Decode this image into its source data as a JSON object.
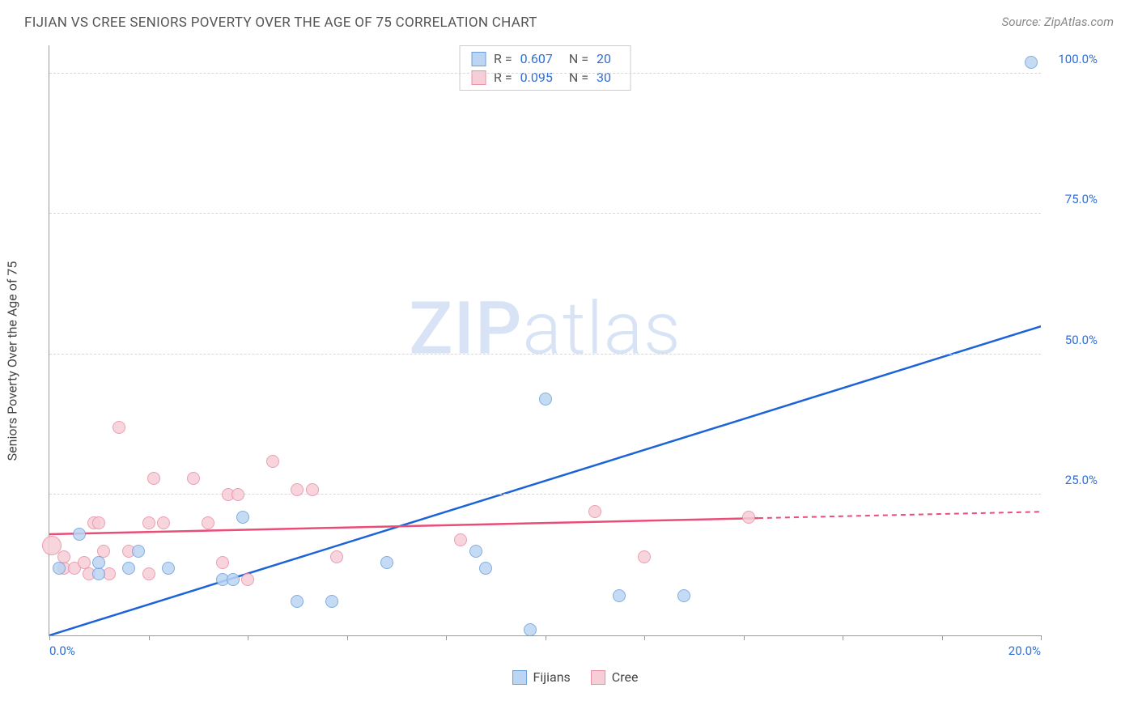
{
  "header": {
    "title": "FIJIAN VS CREE SENIORS POVERTY OVER THE AGE OF 75 CORRELATION CHART",
    "source_prefix": "Source: ",
    "source_name": "ZipAtlas.com"
  },
  "watermark": {
    "zip": "ZIP",
    "atlas": "atlas"
  },
  "chart": {
    "type": "scatter",
    "ylabel": "Seniors Poverty Over the Age of 75",
    "xlim": [
      0,
      20
    ],
    "ylim": [
      0,
      105
    ],
    "xtick_values": [
      0,
      2,
      4,
      6,
      8,
      10,
      12,
      14,
      16,
      18,
      20
    ],
    "xtick_labels": {
      "0": "0.0%",
      "20": "20.0%"
    },
    "ytick_values": [
      25,
      50,
      75,
      100
    ],
    "ytick_labels": [
      "25.0%",
      "50.0%",
      "75.0%",
      "100.0%"
    ],
    "grid_color": "#d8d8d8",
    "axis_color": "#999999",
    "background_color": "#ffffff",
    "label_color": "#2e6fd6",
    "marker_radius": 8,
    "series": [
      {
        "name": "Fijians",
        "fill": "#bcd5f3",
        "stroke": "#6d9fdc",
        "trend_color": "#1b63d7",
        "trend": {
          "x1": 0,
          "y1": 0,
          "x2": 20,
          "y2": 55,
          "solid_until": 20
        },
        "R": "0.607",
        "N": "20",
        "points": [
          {
            "x": 0.2,
            "y": 12
          },
          {
            "x": 0.6,
            "y": 18
          },
          {
            "x": 1.0,
            "y": 11
          },
          {
            "x": 1.0,
            "y": 13
          },
          {
            "x": 1.6,
            "y": 12
          },
          {
            "x": 1.8,
            "y": 15
          },
          {
            "x": 2.4,
            "y": 12
          },
          {
            "x": 3.5,
            "y": 10
          },
          {
            "x": 3.7,
            "y": 10
          },
          {
            "x": 3.9,
            "y": 21
          },
          {
            "x": 5.0,
            "y": 6
          },
          {
            "x": 5.7,
            "y": 6
          },
          {
            "x": 6.8,
            "y": 13
          },
          {
            "x": 8.6,
            "y": 15
          },
          {
            "x": 8.8,
            "y": 12
          },
          {
            "x": 9.7,
            "y": 1
          },
          {
            "x": 10.0,
            "y": 42
          },
          {
            "x": 11.5,
            "y": 7
          },
          {
            "x": 12.8,
            "y": 7
          },
          {
            "x": 19.8,
            "y": 102
          }
        ]
      },
      {
        "name": "Cree",
        "fill": "#f7cdd8",
        "stroke": "#e78fa6",
        "trend_color": "#e94d78",
        "trend": {
          "x1": 0,
          "y1": 18,
          "x2": 20,
          "y2": 22,
          "solid_until": 14.3
        },
        "R": "0.095",
        "N": "30",
        "points": [
          {
            "x": 0.05,
            "y": 16,
            "r": 12
          },
          {
            "x": 0.3,
            "y": 12
          },
          {
            "x": 0.3,
            "y": 14
          },
          {
            "x": 0.5,
            "y": 12
          },
          {
            "x": 0.7,
            "y": 13
          },
          {
            "x": 0.8,
            "y": 11
          },
          {
            "x": 0.9,
            "y": 20
          },
          {
            "x": 1.0,
            "y": 20
          },
          {
            "x": 1.1,
            "y": 15
          },
          {
            "x": 1.2,
            "y": 11
          },
          {
            "x": 1.4,
            "y": 37
          },
          {
            "x": 1.6,
            "y": 15
          },
          {
            "x": 2.0,
            "y": 20
          },
          {
            "x": 2.0,
            "y": 11
          },
          {
            "x": 2.1,
            "y": 28
          },
          {
            "x": 2.3,
            "y": 20
          },
          {
            "x": 2.9,
            "y": 28
          },
          {
            "x": 3.2,
            "y": 20
          },
          {
            "x": 3.5,
            "y": 13
          },
          {
            "x": 3.6,
            "y": 25
          },
          {
            "x": 3.8,
            "y": 25
          },
          {
            "x": 4.0,
            "y": 10
          },
          {
            "x": 4.5,
            "y": 31
          },
          {
            "x": 5.0,
            "y": 26
          },
          {
            "x": 5.3,
            "y": 26
          },
          {
            "x": 5.8,
            "y": 14
          },
          {
            "x": 8.3,
            "y": 17
          },
          {
            "x": 11.0,
            "y": 22
          },
          {
            "x": 12.0,
            "y": 14
          },
          {
            "x": 14.1,
            "y": 21
          }
        ]
      }
    ]
  },
  "stats_legend": {
    "rows": [
      {
        "series": 0,
        "r_label": "R =",
        "n_label": "N ="
      },
      {
        "series": 1,
        "r_label": "R =",
        "n_label": "N ="
      }
    ]
  }
}
